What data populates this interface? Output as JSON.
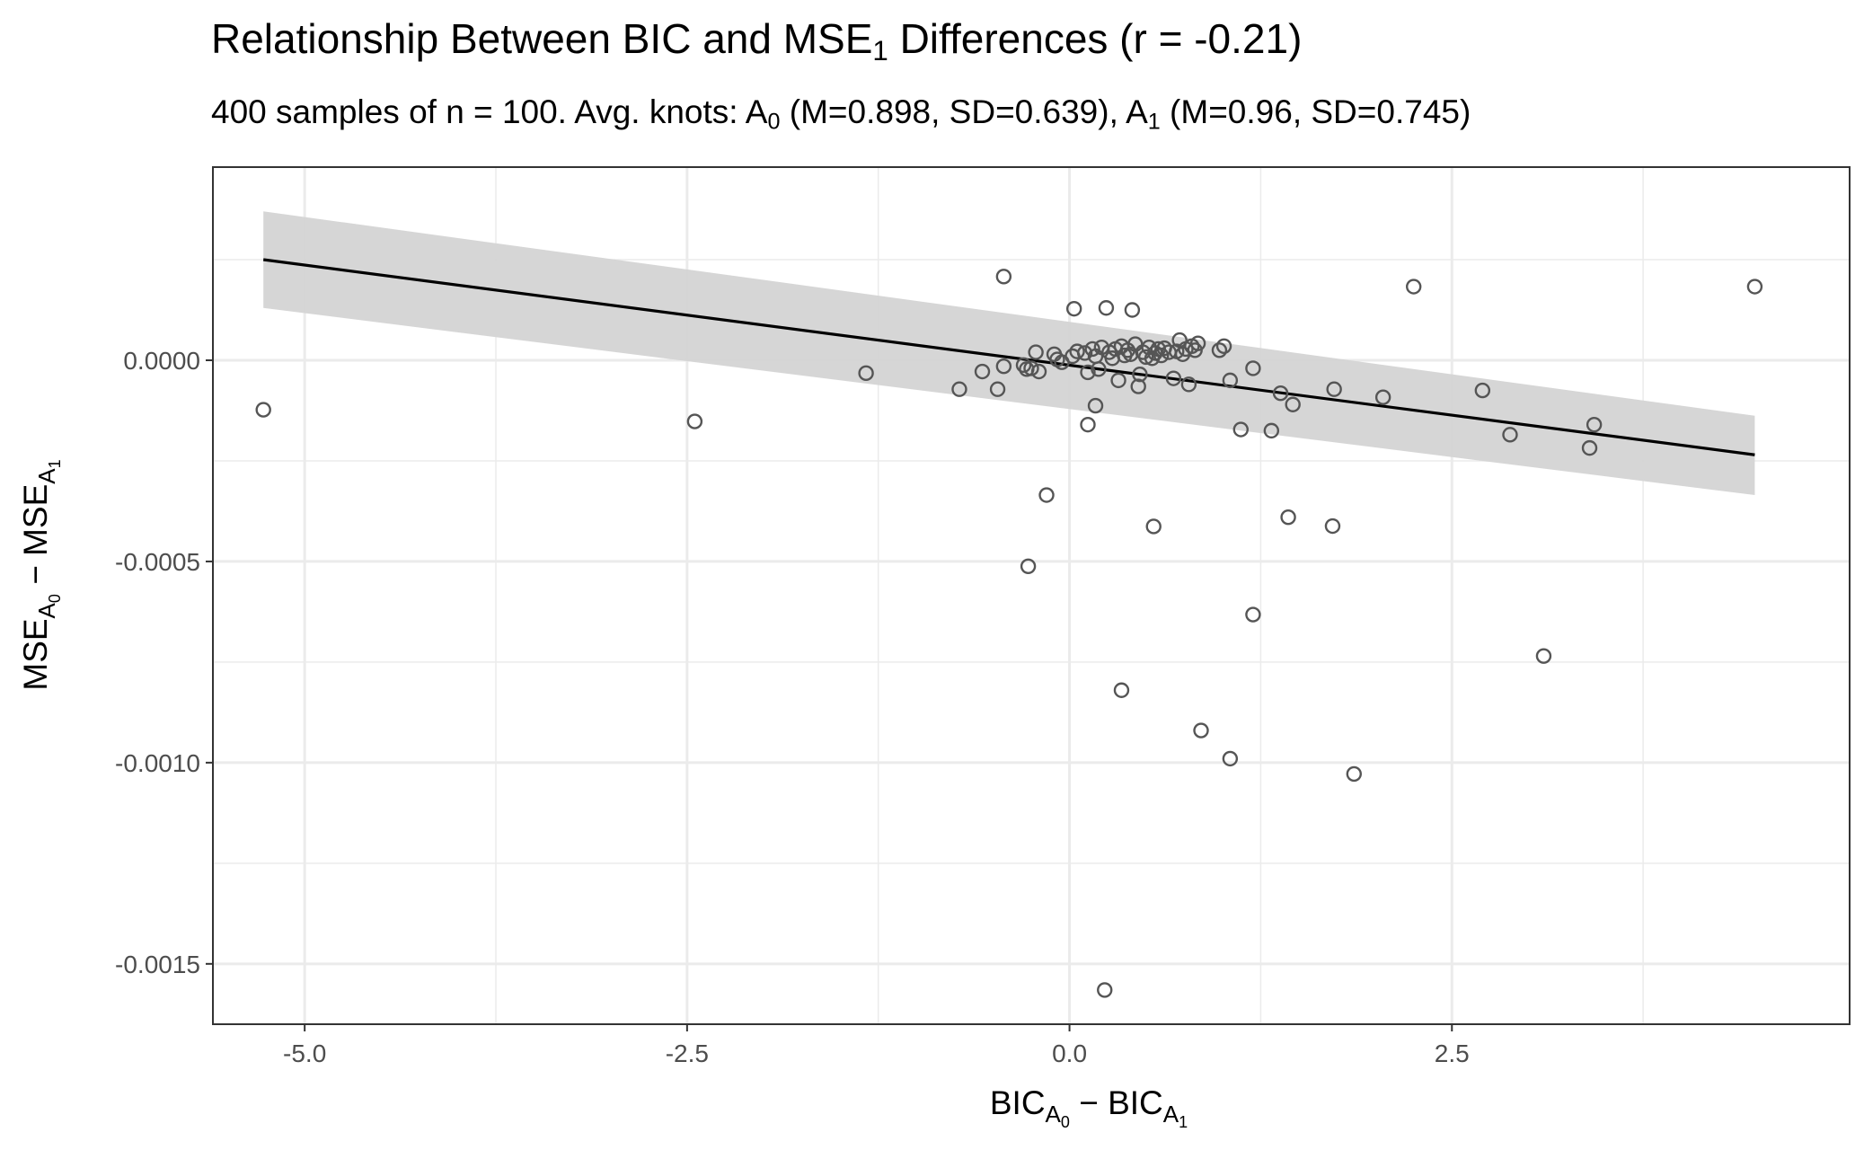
{
  "chart_data": {
    "type": "scatter",
    "title": {
      "prefix": "Relationship Between BIC and MSE",
      "sub": "1",
      "suffix": " Differences (r = -0.21)"
    },
    "subtitle": {
      "prefix": "400 samples of n = 100. Avg. knots:  A",
      "sub0": "0",
      "mid": " (M=0.898, SD=0.639), A",
      "sub1": "1",
      "suffix": " (M=0.96, SD=0.745)"
    },
    "xlabel": {
      "a": "BIC",
      "a_sub": "A",
      "a_subsub": "0",
      "sep": " − ",
      "b": "BIC",
      "b_sub": "A",
      "b_subsub": "1"
    },
    "ylabel": {
      "a": "MSE",
      "a_sub": "A",
      "a_subsub": "0",
      "sep": " − ",
      "b": "MSE",
      "b_sub": "A",
      "b_subsub": "1"
    },
    "xlim": [
      -5.6,
      5.1
    ],
    "ylim": [
      -0.00165,
      0.00048
    ],
    "x_ticks": [
      {
        "value": -5.0,
        "label": "-5.0"
      },
      {
        "value": -2.5,
        "label": "-2.5"
      },
      {
        "value": 0.0,
        "label": "0.0"
      },
      {
        "value": 2.5,
        "label": "2.5"
      }
    ],
    "x_minor": [
      -3.75,
      -1.25,
      1.25,
      3.75
    ],
    "y_ticks": [
      {
        "value": 0.0,
        "label": "0.0000"
      },
      {
        "value": -0.0005,
        "label": "-0.0005"
      },
      {
        "value": -0.001,
        "label": "-0.0010"
      },
      {
        "value": -0.0015,
        "label": "-0.0015"
      }
    ],
    "y_minor": [
      0.00025,
      -0.00025,
      -0.00075,
      -0.00125
    ],
    "grid": true,
    "point_color": "#555555",
    "line_color": "#000000",
    "band_color": "#d4d4d4",
    "panel_border": "#333333",
    "grid_color": "#ebebeb",
    "trend": {
      "x": [
        -5.27,
        4.48
      ],
      "y": [
        0.00025,
        -0.000235
      ],
      "lower": [
        0.00013,
        -0.000335
      ],
      "upper": [
        0.00037,
        -0.000138
      ]
    },
    "points": [
      [
        -5.27,
        -0.000123
      ],
      [
        -2.45,
        -0.000152
      ],
      [
        -1.33,
        -3.2e-05
      ],
      [
        -0.72,
        -7.2e-05
      ],
      [
        -0.57,
        -2.8e-05
      ],
      [
        -0.47,
        -7.2e-05
      ],
      [
        -0.43,
        -1.5e-05
      ],
      [
        -0.43,
        0.000208
      ],
      [
        -0.3,
        -1.2e-05
      ],
      [
        -0.28,
        -2.2e-05
      ],
      [
        -0.25,
        -2e-05
      ],
      [
        -0.22,
        2e-05
      ],
      [
        -0.2,
        -2.8e-05
      ],
      [
        -0.15,
        -0.000335
      ],
      [
        -0.27,
        -0.000512
      ],
      [
        -0.1,
        1.5e-05
      ],
      [
        -0.08,
        2e-06
      ],
      [
        -0.05,
        -5e-06
      ],
      [
        0.02,
        1e-05
      ],
      [
        0.05,
        2.2e-05
      ],
      [
        0.03,
        0.000128
      ],
      [
        0.1,
        1.8e-05
      ],
      [
        0.12,
        -3e-05
      ],
      [
        0.15,
        2.8e-05
      ],
      [
        0.17,
        1e-05
      ],
      [
        0.19,
        -2.2e-05
      ],
      [
        0.21,
        3.2e-05
      ],
      [
        0.12,
        -0.00016
      ],
      [
        0.17,
        -0.000113
      ],
      [
        0.24,
        0.00013
      ],
      [
        0.26,
        2e-05
      ],
      [
        0.28,
        5e-06
      ],
      [
        0.3,
        2.8e-05
      ],
      [
        0.32,
        -5e-05
      ],
      [
        0.34,
        3.5e-05
      ],
      [
        0.36,
        1.2e-05
      ],
      [
        0.38,
        2.5e-05
      ],
      [
        0.4,
        1.5e-05
      ],
      [
        0.41,
        0.000125
      ],
      [
        0.43,
        4e-05
      ],
      [
        0.45,
        -6.5e-05
      ],
      [
        0.46,
        -3.5e-05
      ],
      [
        0.48,
        2e-05
      ],
      [
        0.5,
        8e-06
      ],
      [
        0.52,
        3.2e-05
      ],
      [
        0.54,
        5e-06
      ],
      [
        0.56,
        1.8e-05
      ],
      [
        0.58,
        2.8e-05
      ],
      [
        0.6,
        1.2e-05
      ],
      [
        0.62,
        3e-05
      ],
      [
        0.65,
        2e-05
      ],
      [
        0.68,
        -4.5e-05
      ],
      [
        0.7,
        2.2e-05
      ],
      [
        0.72,
        5e-05
      ],
      [
        0.74,
        1.5e-05
      ],
      [
        0.76,
        2.8e-05
      ],
      [
        0.78,
        -6e-05
      ],
      [
        0.8,
        3.5e-05
      ],
      [
        0.82,
        2.5e-05
      ],
      [
        0.84,
        4.2e-05
      ],
      [
        0.98,
        2.5e-05
      ],
      [
        1.01,
        3.5e-05
      ],
      [
        1.05,
        -5e-05
      ],
      [
        0.55,
        -0.000413
      ],
      [
        0.34,
        -0.00082
      ],
      [
        0.23,
        -0.001565
      ],
      [
        0.86,
        -0.00092
      ],
      [
        1.05,
        -0.00099
      ],
      [
        1.12,
        -0.000172
      ],
      [
        1.2,
        -2e-05
      ],
      [
        1.2,
        -0.000632
      ],
      [
        1.32,
        -0.000175
      ],
      [
        1.38,
        -8.2e-05
      ],
      [
        1.43,
        -0.00039
      ],
      [
        1.46,
        -0.00011
      ],
      [
        1.72,
        -0.000412
      ],
      [
        1.73,
        -7.2e-05
      ],
      [
        1.86,
        -0.001028
      ],
      [
        2.05,
        -9.2e-05
      ],
      [
        2.25,
        0.000183
      ],
      [
        2.7,
        -7.5e-05
      ],
      [
        2.88,
        -0.000185
      ],
      [
        3.1,
        -0.000735
      ],
      [
        3.4,
        -0.000218
      ],
      [
        3.43,
        -0.00016
      ],
      [
        4.48,
        0.000183
      ]
    ]
  }
}
